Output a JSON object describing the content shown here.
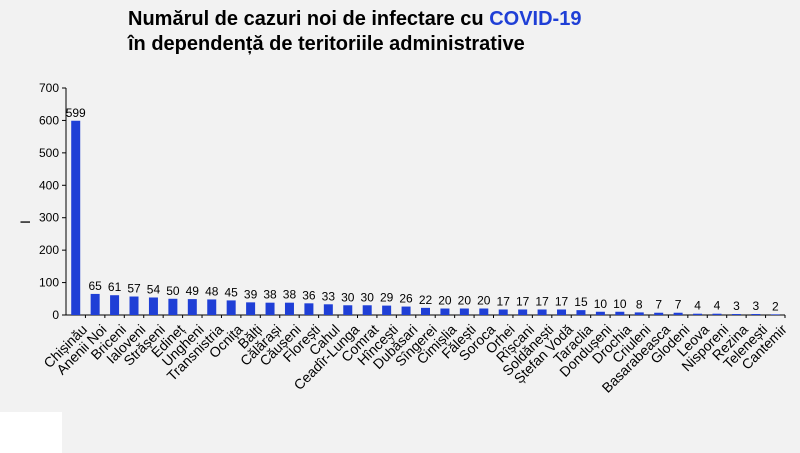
{
  "chart_data": {
    "type": "bar",
    "title_line1_prefix": "Numărul de cazuri noi de infectare cu ",
    "title_line1_highlight": "COVID-19",
    "title_line2": "în dependență de teritoriile administrative",
    "ylabel": "I",
    "xlabel": "",
    "ylim": [
      0,
      700
    ],
    "yticks": [
      0,
      100,
      200,
      300,
      400,
      500,
      600,
      700
    ],
    "grid": false,
    "bar_color": "#1f3fd6",
    "title_accent_color": "#1f3fd6",
    "categories": [
      "Chișinău",
      "Anenii Noi",
      "Briceni",
      "Ialoveni",
      "Strășeni",
      "Edineț",
      "Ungheni",
      "Transnistria",
      "Ocnița",
      "Bălți",
      "Călărași",
      "Căușeni",
      "Florești",
      "Cahul",
      "Ceadîr-Lunga",
      "Comrat",
      "Hîncești",
      "Dubăsari",
      "Sîngerei",
      "Cimișlia",
      "Fălești",
      "Soroca",
      "Orhei",
      "Rîșcani",
      "Soldănești",
      "Ștefan Vodă",
      "Taraclia",
      "Dondușeni",
      "Drochia",
      "Criuleni",
      "Basarabeasca",
      "Glodeni",
      "Leova",
      "Nisporeni",
      "Rezina",
      "Telenești",
      "Cantemir"
    ],
    "values": [
      599,
      65,
      61,
      57,
      54,
      50,
      49,
      48,
      45,
      39,
      38,
      38,
      36,
      33,
      30,
      30,
      29,
      26,
      22,
      20,
      20,
      20,
      17,
      17,
      17,
      17,
      15,
      10,
      10,
      8,
      7,
      7,
      4,
      4,
      3,
      3,
      2
    ]
  }
}
